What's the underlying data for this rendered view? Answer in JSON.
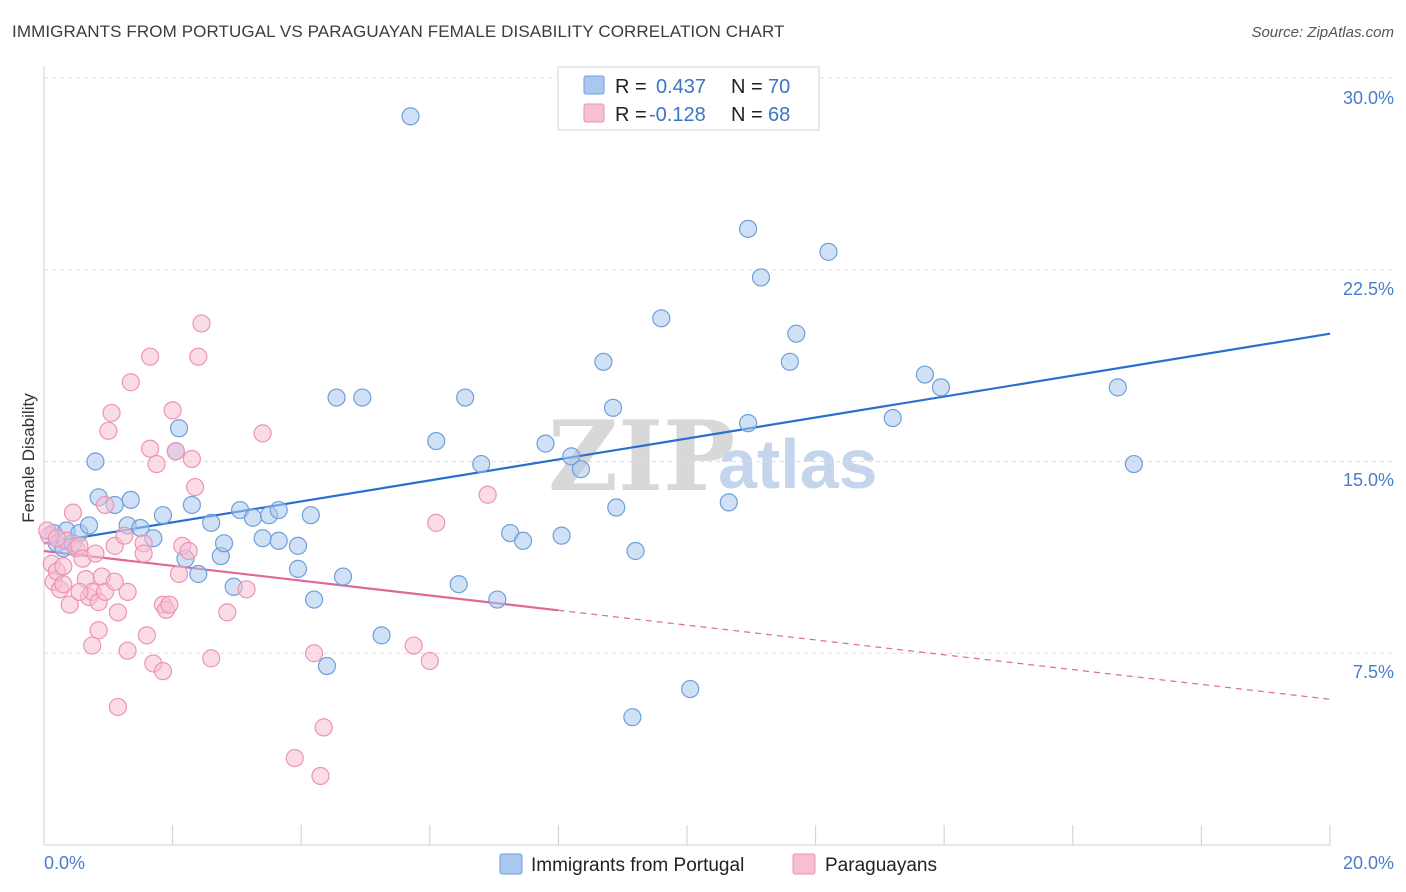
{
  "title": "IMMIGRANTS FROM PORTUGAL VS PARAGUAYAN FEMALE DISABILITY CORRELATION CHART",
  "source": "Source: ZipAtlas.com",
  "colors": {
    "blue_fill": "#aac8ef",
    "blue_stroke": "#6e9fdc",
    "blue_line": "#2b6fce",
    "pink_fill": "#f6bfd3",
    "pink_stroke": "#ee93b4",
    "pink_line": "#e0679a",
    "tick_text": "#4a7cc9",
    "grid": "#dddddd"
  },
  "legend": {
    "rows": [
      {
        "r_label": "R =",
        "r_value": "0.437",
        "n_label": "N =",
        "n_value": "70",
        "series": "blue"
      },
      {
        "r_label": "R =",
        "r_value": "-0.128",
        "n_label": "N =",
        "n_value": "68",
        "series": "pink"
      }
    ]
  },
  "watermark": {
    "zip": "ZIP",
    "atlas": "atlas"
  },
  "chart_data": {
    "type": "scatter",
    "xlabel": "",
    "ylabel": "Female Disability",
    "xlim": [
      0,
      20
    ],
    "ylim": [
      0,
      30
    ],
    "x_tick_labels": [
      "0.0%",
      "20.0%"
    ],
    "y_ticks": [
      7.5,
      15.0,
      22.5,
      30.0
    ],
    "y_tick_labels": [
      "7.5%",
      "15.0%",
      "22.5%",
      "30.0%"
    ],
    "series": [
      {
        "name": "Immigrants from Portugal",
        "color": "blue",
        "trend": {
          "x0": 0,
          "y0": 11.8,
          "x1": 20,
          "y1": 20.0,
          "dashed_from": null
        },
        "points": [
          [
            0.15,
            12.2
          ],
          [
            0.2,
            11.8
          ],
          [
            0.3,
            11.6
          ],
          [
            0.35,
            12.3
          ],
          [
            0.45,
            11.8
          ],
          [
            0.55,
            12.2
          ],
          [
            0.7,
            12.5
          ],
          [
            0.8,
            15.0
          ],
          [
            0.85,
            13.6
          ],
          [
            1.1,
            13.3
          ],
          [
            1.3,
            12.5
          ],
          [
            1.35,
            13.5
          ],
          [
            1.5,
            12.4
          ],
          [
            1.7,
            12.0
          ],
          [
            1.85,
            12.9
          ],
          [
            2.05,
            15.4
          ],
          [
            2.1,
            16.3
          ],
          [
            2.2,
            11.2
          ],
          [
            2.3,
            13.3
          ],
          [
            2.4,
            10.6
          ],
          [
            2.6,
            12.6
          ],
          [
            2.75,
            11.3
          ],
          [
            2.8,
            11.8
          ],
          [
            2.95,
            10.1
          ],
          [
            3.05,
            13.1
          ],
          [
            3.25,
            12.8
          ],
          [
            3.4,
            12.0
          ],
          [
            3.5,
            12.9
          ],
          [
            3.65,
            13.1
          ],
          [
            3.65,
            11.9
          ],
          [
            3.95,
            11.7
          ],
          [
            3.95,
            10.8
          ],
          [
            4.15,
            12.9
          ],
          [
            4.2,
            9.6
          ],
          [
            4.4,
            7.0
          ],
          [
            4.55,
            17.5
          ],
          [
            4.65,
            10.5
          ],
          [
            4.95,
            17.5
          ],
          [
            5.25,
            8.2
          ],
          [
            5.7,
            28.5
          ],
          [
            6.1,
            15.8
          ],
          [
            6.45,
            10.2
          ],
          [
            6.55,
            17.5
          ],
          [
            6.8,
            14.9
          ],
          [
            7.05,
            9.6
          ],
          [
            7.25,
            12.2
          ],
          [
            7.45,
            11.9
          ],
          [
            7.8,
            15.7
          ],
          [
            8.05,
            12.1
          ],
          [
            8.2,
            15.2
          ],
          [
            8.35,
            14.7
          ],
          [
            8.7,
            18.9
          ],
          [
            8.85,
            17.1
          ],
          [
            8.9,
            13.2
          ],
          [
            9.2,
            11.5
          ],
          [
            9.15,
            5.0
          ],
          [
            9.6,
            20.6
          ],
          [
            10.05,
            6.1
          ],
          [
            10.65,
            13.4
          ],
          [
            10.95,
            24.1
          ],
          [
            10.95,
            16.5
          ],
          [
            11.15,
            22.2
          ],
          [
            11.6,
            18.9
          ],
          [
            11.7,
            20.0
          ],
          [
            12.2,
            23.2
          ],
          [
            13.2,
            16.7
          ],
          [
            13.7,
            18.4
          ],
          [
            13.95,
            17.9
          ],
          [
            16.7,
            17.9
          ],
          [
            16.95,
            14.9
          ]
        ]
      },
      {
        "name": "Paraguayans",
        "color": "pink",
        "trend": {
          "x0": 0,
          "y0": 11.5,
          "x1": 20,
          "y1": 5.7,
          "dashed_from": 8.0
        },
        "points": [
          [
            0.08,
            12.1
          ],
          [
            0.12,
            11.0
          ],
          [
            0.15,
            10.3
          ],
          [
            0.2,
            10.7
          ],
          [
            0.25,
            10.0
          ],
          [
            0.3,
            10.2
          ],
          [
            0.35,
            11.9
          ],
          [
            0.4,
            9.4
          ],
          [
            0.45,
            13.0
          ],
          [
            0.5,
            11.6
          ],
          [
            0.55,
            11.7
          ],
          [
            0.6,
            11.2
          ],
          [
            0.65,
            10.4
          ],
          [
            0.7,
            9.7
          ],
          [
            0.75,
            9.9
          ],
          [
            0.8,
            11.4
          ],
          [
            0.85,
            9.5
          ],
          [
            0.9,
            10.5
          ],
          [
            0.95,
            9.9
          ],
          [
            0.75,
            7.8
          ],
          [
            0.85,
            8.4
          ],
          [
            0.95,
            13.3
          ],
          [
            1.0,
            16.2
          ],
          [
            1.05,
            16.9
          ],
          [
            1.1,
            10.3
          ],
          [
            1.1,
            11.7
          ],
          [
            1.15,
            9.1
          ],
          [
            1.15,
            5.4
          ],
          [
            1.25,
            12.1
          ],
          [
            1.3,
            7.6
          ],
          [
            1.3,
            9.9
          ],
          [
            1.35,
            18.1
          ],
          [
            1.55,
            11.8
          ],
          [
            1.55,
            11.4
          ],
          [
            1.6,
            8.2
          ],
          [
            1.65,
            19.1
          ],
          [
            1.65,
            15.5
          ],
          [
            1.7,
            7.1
          ],
          [
            1.75,
            14.9
          ],
          [
            1.85,
            6.8
          ],
          [
            1.85,
            9.4
          ],
          [
            1.9,
            9.2
          ],
          [
            1.95,
            9.4
          ],
          [
            2.0,
            17.0
          ],
          [
            2.05,
            15.4
          ],
          [
            2.1,
            10.6
          ],
          [
            2.15,
            11.7
          ],
          [
            2.25,
            11.5
          ],
          [
            2.3,
            15.1
          ],
          [
            2.35,
            14.0
          ],
          [
            2.4,
            19.1
          ],
          [
            2.45,
            20.4
          ],
          [
            2.6,
            7.3
          ],
          [
            2.85,
            9.1
          ],
          [
            3.15,
            10.0
          ],
          [
            3.4,
            16.1
          ],
          [
            3.9,
            3.4
          ],
          [
            4.2,
            7.5
          ],
          [
            4.3,
            2.7
          ],
          [
            4.35,
            4.6
          ],
          [
            5.75,
            7.8
          ],
          [
            6.0,
            7.2
          ],
          [
            6.1,
            12.6
          ],
          [
            6.9,
            13.7
          ],
          [
            0.05,
            12.3
          ],
          [
            0.2,
            12.0
          ],
          [
            0.3,
            10.9
          ],
          [
            0.55,
            9.9
          ]
        ]
      }
    ]
  },
  "bottom_legend": {
    "items": [
      {
        "label": "Immigrants from Portugal",
        "series": "blue"
      },
      {
        "label": "Paraguayans",
        "series": "pink"
      }
    ]
  }
}
